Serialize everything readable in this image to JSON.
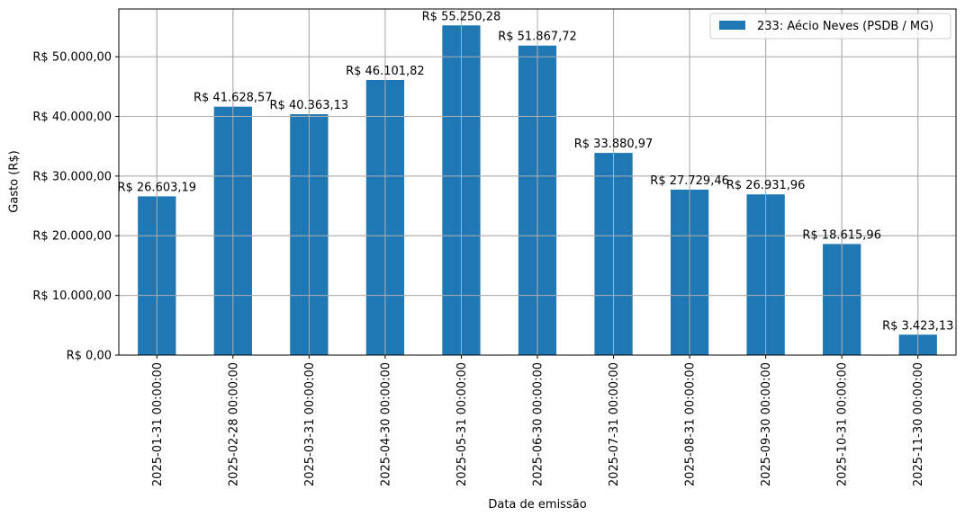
{
  "chart_data": {
    "type": "bar",
    "title": "",
    "xlabel": "Data de emissão",
    "ylabel": "Gasto (R$)",
    "ylim": [
      0,
      58000
    ],
    "grid": true,
    "legend_position": "upper right",
    "categories": [
      "2025-01-31 00:00:00",
      "2025-02-28 00:00:00",
      "2025-03-31 00:00:00",
      "2025-04-30 00:00:00",
      "2025-05-31 00:00:00",
      "2025-06-30 00:00:00",
      "2025-07-31 00:00:00",
      "2025-08-31 00:00:00",
      "2025-09-30 00:00:00",
      "2025-10-31 00:00:00",
      "2025-11-30 00:00:00"
    ],
    "series": [
      {
        "name": "233: Aécio Neves (PSDB / MG)",
        "color": "#1f77b4",
        "values": [
          26603.19,
          41628.57,
          40363.13,
          46101.82,
          55250.28,
          51867.72,
          33880.97,
          27729.46,
          26931.96,
          18615.96,
          3423.13
        ],
        "labels": [
          "R$ 26.603,19",
          "R$ 41.628,57",
          "R$ 40.363,13",
          "R$ 46.101,82",
          "R$ 55.250,28",
          "R$ 51.867,72",
          "R$ 33.880,97",
          "R$ 27.729,46",
          "R$ 26.931,96",
          "R$ 18.615,96",
          "R$ 3.423,13"
        ]
      }
    ],
    "yticks": [
      0,
      10000,
      20000,
      30000,
      40000,
      50000
    ],
    "ytick_labels": [
      "R$ 0,00",
      "R$ 10.000,00",
      "R$ 20.000,00",
      "R$ 30.000,00",
      "R$ 40.000,00",
      "R$ 50.000,00"
    ]
  },
  "colors": {
    "bar": "#1f77b4",
    "grid": "#b0b0b0",
    "axis": "#000000",
    "legend_border": "#cccccc"
  }
}
